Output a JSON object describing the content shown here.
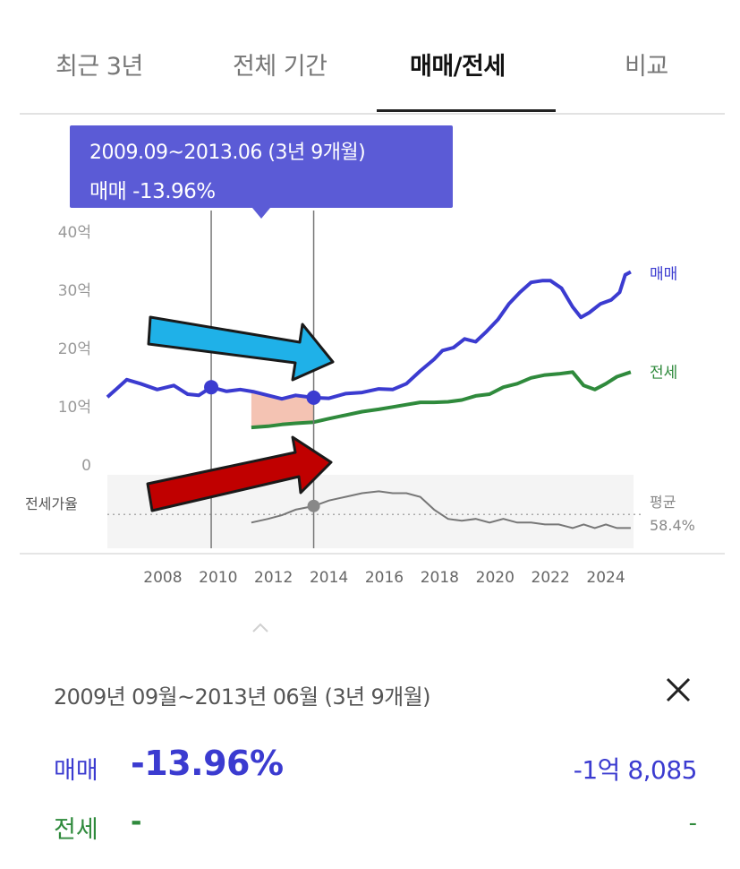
{
  "tabs": [
    "최근 3년",
    "전체 기간",
    "매매/전세",
    "비교"
  ],
  "active_tab": 2,
  "tooltip": {
    "line1": "2009.09~2013.06 (3년 9개월)",
    "line2": "매매 -13.96%"
  },
  "colors": {
    "sale": "#3b3bd0",
    "rent": "#2f8a3c",
    "ratio": "#777777",
    "tooltip": "#5b5bd6",
    "arrow_blue": "#1fb1e8",
    "arrow_red": "#c00000"
  },
  "chart_data": {
    "type": "line",
    "x_ticks": [
      2008,
      2010,
      2012,
      2014,
      2016,
      2018,
      2020,
      2022,
      2024
    ],
    "x_tick_labels": [
      "2008",
      "2010",
      "2012",
      "2014",
      "2016",
      "2018",
      "2020",
      "2022",
      "2024"
    ],
    "xlim": [
      2006.0,
      2025.0
    ],
    "y_ticks": [
      0,
      10,
      20,
      30,
      40
    ],
    "y_tick_labels": [
      "0",
      "10억",
      "20억",
      "30억",
      "40억"
    ],
    "ylim": [
      0,
      40
    ],
    "series": [
      {
        "name": "매매",
        "x": [
          2006.0,
          2006.7,
          2007.2,
          2007.8,
          2008.4,
          2008.9,
          2009.3,
          2009.75,
          2010.3,
          2010.8,
          2011.3,
          2011.8,
          2012.3,
          2012.8,
          2013.45,
          2014.0,
          2014.6,
          2015.2,
          2015.8,
          2016.3,
          2016.8,
          2017.3,
          2017.8,
          2018.1,
          2018.5,
          2018.9,
          2019.3,
          2019.7,
          2020.1,
          2020.5,
          2020.9,
          2021.3,
          2021.7,
          2022.0,
          2022.4,
          2022.8,
          2023.1,
          2023.4,
          2023.8,
          2024.2,
          2024.5,
          2024.7,
          2024.9
        ],
        "y": [
          11.5,
          14.5,
          13.8,
          12.8,
          13.5,
          12.0,
          11.8,
          13.2,
          12.5,
          12.8,
          12.4,
          11.8,
          11.2,
          11.8,
          11.4,
          11.3,
          12.1,
          12.3,
          12.9,
          12.8,
          13.8,
          16.0,
          18.0,
          19.5,
          20.0,
          21.5,
          21.0,
          22.8,
          24.8,
          27.5,
          29.5,
          31.2,
          31.5,
          31.5,
          30.2,
          27.0,
          25.2,
          26.0,
          27.5,
          28.2,
          29.5,
          32.5,
          33.0
        ]
      },
      {
        "name": "전세",
        "x": [
          2011.2,
          2011.8,
          2012.3,
          2012.8,
          2013.45,
          2014.0,
          2014.6,
          2015.2,
          2015.8,
          2016.3,
          2016.8,
          2017.3,
          2017.8,
          2018.3,
          2018.8,
          2019.3,
          2019.8,
          2020.3,
          2020.8,
          2021.3,
          2021.8,
          2022.3,
          2022.8,
          2023.2,
          2023.6,
          2024.0,
          2024.4,
          2024.9
        ],
        "y": [
          6.3,
          6.5,
          6.8,
          7.0,
          7.2,
          7.8,
          8.4,
          9.0,
          9.4,
          9.8,
          10.2,
          10.6,
          10.6,
          10.7,
          11.0,
          11.7,
          12.0,
          13.2,
          13.8,
          14.8,
          15.3,
          15.5,
          15.8,
          13.5,
          12.8,
          13.8,
          15.0,
          15.8
        ]
      }
    ],
    "ratio_series": {
      "name": "전세가율",
      "x": [
        2011.2,
        2011.8,
        2012.3,
        2012.8,
        2013.45,
        2014.0,
        2014.6,
        2015.2,
        2015.8,
        2016.3,
        2016.8,
        2017.3,
        2017.8,
        2018.3,
        2018.8,
        2019.3,
        2019.8,
        2020.3,
        2020.8,
        2021.3,
        2021.8,
        2022.3,
        2022.8,
        2023.2,
        2023.6,
        2024.0,
        2024.4,
        2024.9
      ],
      "y": [
        54,
        56,
        58,
        61,
        63,
        66,
        68,
        70,
        71,
        70,
        70,
        68,
        61,
        56,
        55,
        56,
        54,
        56,
        54,
        54,
        53,
        53,
        51,
        53,
        51,
        53,
        51,
        51
      ],
      "ylim": [
        40,
        80
      ],
      "average": 58.4
    },
    "selection": {
      "start": 2009.75,
      "end": 2013.45
    },
    "legend": {
      "sale": "매매",
      "rent": "전세",
      "ratio": "전세가율",
      "avg_label": "평균",
      "avg_value": "58.4%"
    }
  },
  "summary": {
    "period": "2009년 09월~2013년 06월 (3년 9개월)",
    "sale_label": "매매",
    "sale_pct": "-13.96%",
    "sale_amount": "-1억 8,085",
    "rent_label": "전세",
    "rent_pct": "-",
    "rent_amount": "-"
  }
}
